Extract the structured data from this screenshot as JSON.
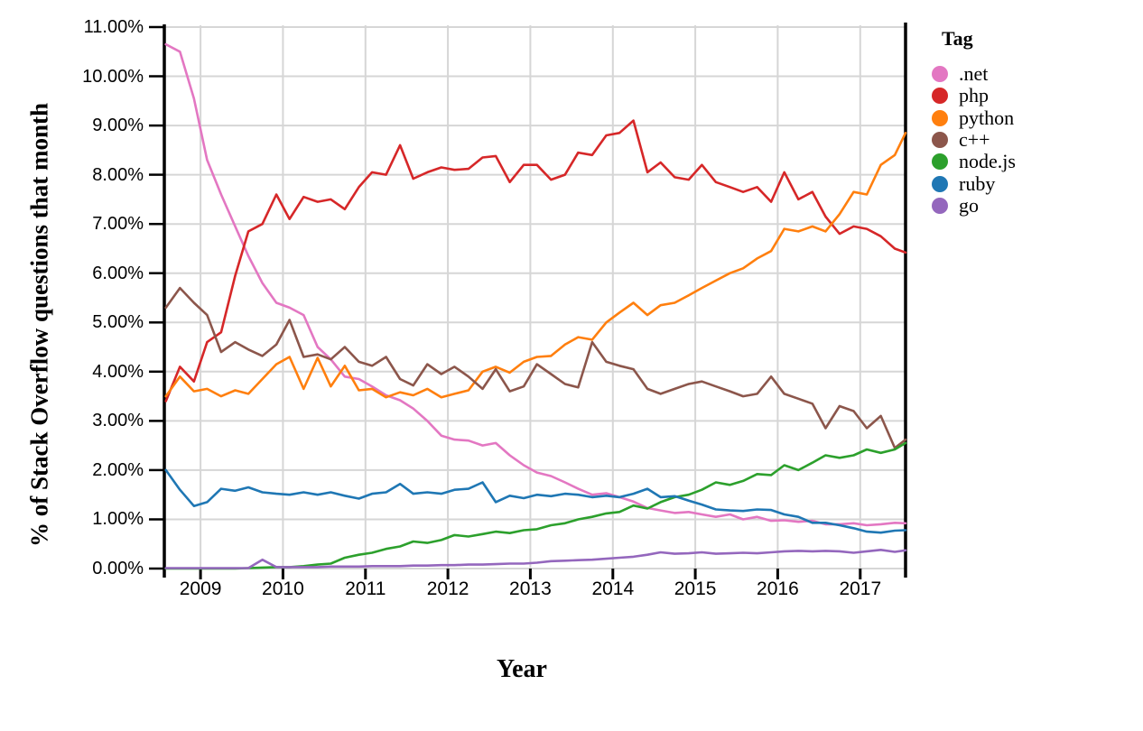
{
  "figure": {
    "background": "#ffffff",
    "axis_color": "#000000",
    "grid_color": "#d6d6d6"
  },
  "chart_data": {
    "type": "line",
    "title": "",
    "xlabel": "Year",
    "ylabel": "% of Stack Overflow questions that month",
    "legend_title": "Tag",
    "legend_position": "right",
    "grid": true,
    "xlim": [
      2008.55,
      2017.55
    ],
    "ylim": [
      0,
      11
    ],
    "x_ticks": [
      2009,
      2010,
      2011,
      2012,
      2013,
      2014,
      2015,
      2016,
      2017
    ],
    "x_tick_labels": [
      "2009",
      "2010",
      "2011",
      "2012",
      "2013",
      "2014",
      "2015",
      "2016",
      "2017"
    ],
    "y_ticks": [
      0,
      1,
      2,
      3,
      4,
      5,
      6,
      7,
      8,
      9,
      10,
      11
    ],
    "y_tick_labels": [
      "0.00%",
      "1.00%",
      "2.00%",
      "3.00%",
      "4.00%",
      "5.00%",
      "6.00%",
      "7.00%",
      "8.00%",
      "9.00%",
      "10.00%",
      "11.00%"
    ],
    "x": [
      2008.58,
      2008.75,
      2008.92,
      2009.08,
      2009.25,
      2009.42,
      2009.58,
      2009.75,
      2009.92,
      2010.08,
      2010.25,
      2010.42,
      2010.58,
      2010.75,
      2010.92,
      2011.08,
      2011.25,
      2011.42,
      2011.58,
      2011.75,
      2011.92,
      2012.08,
      2012.25,
      2012.42,
      2012.58,
      2012.75,
      2012.92,
      2013.08,
      2013.25,
      2013.42,
      2013.58,
      2013.75,
      2013.92,
      2014.08,
      2014.25,
      2014.42,
      2014.58,
      2014.75,
      2014.92,
      2015.08,
      2015.25,
      2015.42,
      2015.58,
      2015.75,
      2015.92,
      2016.08,
      2016.25,
      2016.42,
      2016.58,
      2016.75,
      2016.92,
      2017.08,
      2017.25,
      2017.42,
      2017.55
    ],
    "series": [
      {
        "name": ".net",
        "color": "#e377c2",
        "values": [
          10.65,
          10.5,
          9.55,
          8.3,
          7.6,
          6.95,
          6.35,
          5.8,
          5.4,
          5.3,
          5.15,
          4.5,
          4.25,
          3.9,
          3.85,
          3.7,
          3.52,
          3.42,
          3.25,
          3.0,
          2.7,
          2.62,
          2.6,
          2.5,
          2.55,
          2.3,
          2.1,
          1.95,
          1.88,
          1.75,
          1.62,
          1.5,
          1.53,
          1.45,
          1.36,
          1.23,
          1.18,
          1.13,
          1.15,
          1.1,
          1.05,
          1.1,
          1.0,
          1.05,
          0.97,
          0.98,
          0.95,
          0.97,
          0.9,
          0.9,
          0.92,
          0.88,
          0.9,
          0.93,
          0.92
        ]
      },
      {
        "name": "php",
        "color": "#d62728",
        "values": [
          3.4,
          4.1,
          3.8,
          4.6,
          4.8,
          5.95,
          6.85,
          7.0,
          7.6,
          7.1,
          7.55,
          7.45,
          7.5,
          7.3,
          7.75,
          8.05,
          8.0,
          8.6,
          7.92,
          8.05,
          8.15,
          8.1,
          8.12,
          8.35,
          8.38,
          7.85,
          8.2,
          8.2,
          7.9,
          8.0,
          8.45,
          8.4,
          8.8,
          8.85,
          9.1,
          8.05,
          8.25,
          7.95,
          7.9,
          8.2,
          7.85,
          7.75,
          7.65,
          7.75,
          7.45,
          8.05,
          7.5,
          7.65,
          7.15,
          6.8,
          6.95,
          6.9,
          6.75,
          6.5,
          6.42
        ]
      },
      {
        "name": "python",
        "color": "#ff7f0e",
        "values": [
          3.5,
          3.9,
          3.6,
          3.65,
          3.5,
          3.62,
          3.55,
          3.85,
          4.15,
          4.3,
          3.65,
          4.28,
          3.7,
          4.12,
          3.62,
          3.65,
          3.48,
          3.58,
          3.52,
          3.65,
          3.48,
          3.55,
          3.62,
          4.0,
          4.1,
          3.98,
          4.2,
          4.3,
          4.32,
          4.55,
          4.7,
          4.65,
          5.0,
          5.2,
          5.4,
          5.15,
          5.35,
          5.4,
          5.55,
          5.7,
          5.85,
          6.0,
          6.1,
          6.3,
          6.45,
          6.9,
          6.85,
          6.95,
          6.85,
          7.2,
          7.65,
          7.6,
          8.2,
          8.4,
          8.85
        ]
      },
      {
        "name": "c++",
        "color": "#8c564b",
        "values": [
          5.3,
          5.7,
          5.4,
          5.15,
          4.4,
          4.6,
          4.45,
          4.32,
          4.55,
          5.05,
          4.3,
          4.35,
          4.25,
          4.5,
          4.2,
          4.12,
          4.3,
          3.85,
          3.72,
          4.15,
          3.95,
          4.1,
          3.9,
          3.65,
          4.05,
          3.6,
          3.7,
          4.15,
          3.95,
          3.75,
          3.68,
          4.6,
          4.2,
          4.12,
          4.05,
          3.65,
          3.55,
          3.65,
          3.75,
          3.8,
          3.7,
          3.6,
          3.5,
          3.55,
          3.9,
          3.55,
          3.45,
          3.35,
          2.85,
          3.3,
          3.2,
          2.85,
          3.1,
          2.45,
          2.62
        ]
      },
      {
        "name": "node.js",
        "color": "#2ca02c",
        "values": [
          0,
          0,
          0,
          0,
          0,
          0,
          0.01,
          0.02,
          0.03,
          0.03,
          0.05,
          0.08,
          0.1,
          0.22,
          0.28,
          0.32,
          0.4,
          0.45,
          0.55,
          0.52,
          0.58,
          0.68,
          0.65,
          0.7,
          0.75,
          0.72,
          0.78,
          0.8,
          0.88,
          0.92,
          1.0,
          1.05,
          1.12,
          1.15,
          1.28,
          1.22,
          1.35,
          1.45,
          1.5,
          1.6,
          1.75,
          1.7,
          1.78,
          1.92,
          1.9,
          2.1,
          2.0,
          2.15,
          2.3,
          2.25,
          2.3,
          2.42,
          2.35,
          2.42,
          2.55
        ]
      },
      {
        "name": "ruby",
        "color": "#1f77b4",
        "values": [
          2.0,
          1.6,
          1.27,
          1.35,
          1.62,
          1.58,
          1.65,
          1.55,
          1.52,
          1.5,
          1.55,
          1.5,
          1.55,
          1.48,
          1.42,
          1.52,
          1.55,
          1.72,
          1.52,
          1.55,
          1.52,
          1.6,
          1.62,
          1.75,
          1.35,
          1.48,
          1.43,
          1.5,
          1.47,
          1.52,
          1.5,
          1.45,
          1.48,
          1.45,
          1.52,
          1.62,
          1.45,
          1.47,
          1.38,
          1.3,
          1.2,
          1.18,
          1.17,
          1.2,
          1.19,
          1.1,
          1.05,
          0.93,
          0.93,
          0.88,
          0.82,
          0.75,
          0.73,
          0.77,
          0.78
        ]
      },
      {
        "name": "go",
        "color": "#9467bd",
        "values": [
          0.01,
          0.01,
          0.01,
          0.01,
          0.01,
          0.01,
          0.01,
          0.18,
          0.03,
          0.03,
          0.03,
          0.03,
          0.04,
          0.04,
          0.04,
          0.05,
          0.05,
          0.05,
          0.06,
          0.06,
          0.07,
          0.07,
          0.08,
          0.08,
          0.09,
          0.1,
          0.1,
          0.12,
          0.15,
          0.16,
          0.17,
          0.18,
          0.2,
          0.22,
          0.24,
          0.28,
          0.33,
          0.3,
          0.31,
          0.33,
          0.3,
          0.31,
          0.32,
          0.31,
          0.33,
          0.35,
          0.36,
          0.35,
          0.36,
          0.35,
          0.32,
          0.35,
          0.38,
          0.34,
          0.37
        ]
      }
    ]
  }
}
